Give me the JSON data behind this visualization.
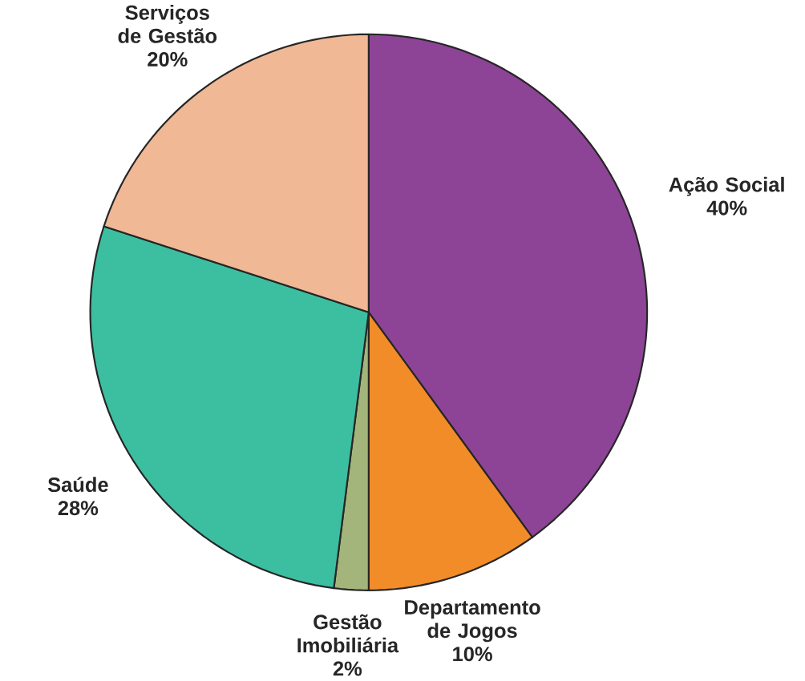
{
  "chart_data": {
    "type": "pie",
    "categories": [
      "Ação Social",
      "Departamento de Jogos",
      "Gestão Imobiliária",
      "Saúde",
      "Serviços de Gestão"
    ],
    "values": [
      40,
      10,
      2,
      28,
      20
    ],
    "value_labels": [
      "40%",
      "10%",
      "2%",
      "28%",
      "20%"
    ],
    "colors": [
      "#8e4496",
      "#f28c28",
      "#a3b57a",
      "#3cbfa0",
      "#f0b894"
    ]
  }
}
